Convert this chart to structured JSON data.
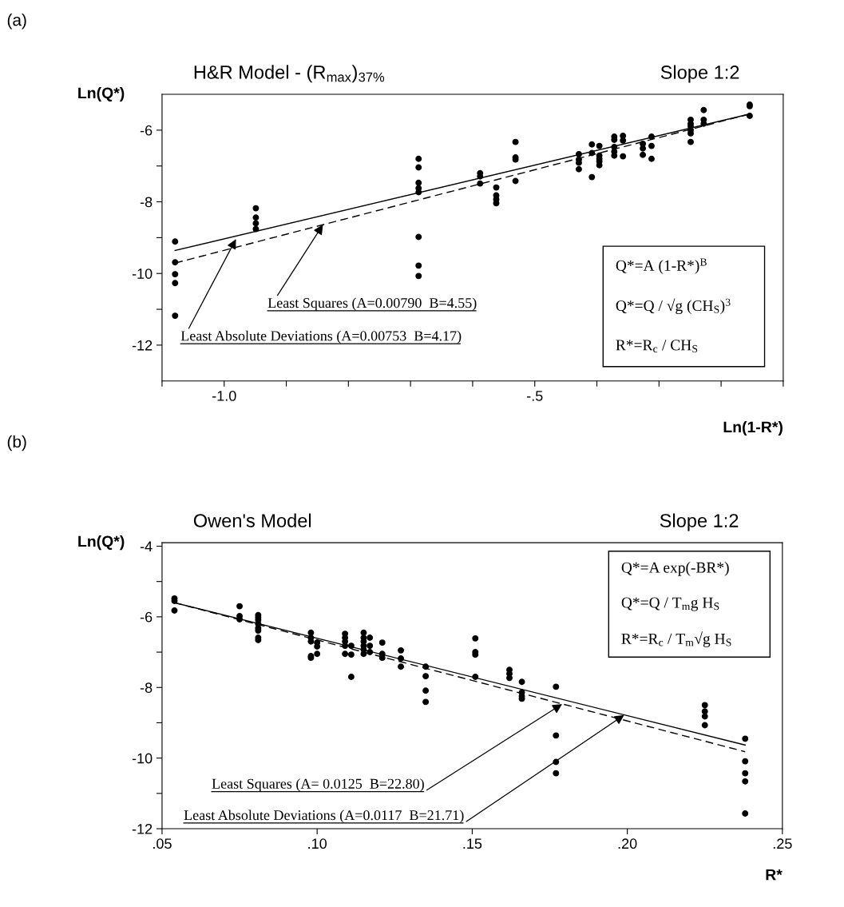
{
  "chart_data": [
    {
      "type": "scatter",
      "marker": "circle",
      "title": "H&R Model - (R$_{max}$)$_{37%}$",
      "subtitle": "Slope 1:2",
      "ylabel": "Ln(Q*)",
      "xlabel": "Ln(1-R*)",
      "xlim": [
        -1.1,
        -0.1
      ],
      "xticks": [
        {
          "value": -1.1,
          "label": null
        },
        {
          "value": -1.0,
          "label": "-1.0"
        },
        {
          "value": -0.9,
          "label": null
        },
        {
          "value": -0.8,
          "label": null
        },
        {
          "value": -0.7,
          "label": null
        },
        {
          "value": -0.6,
          "label": null
        },
        {
          "value": -0.5,
          "label": "-.5"
        },
        {
          "value": -0.4,
          "label": null
        },
        {
          "value": -0.3,
          "label": null
        },
        {
          "value": -0.2,
          "label": null
        },
        {
          "value": -0.1,
          "label": null
        }
      ],
      "ylim": [
        -13,
        -5
      ],
      "yticks": [
        -12,
        {
          "value": -11,
          "label": null
        },
        -10,
        {
          "value": -9,
          "label": null
        },
        -8,
        {
          "value": -7,
          "label": null
        },
        -6
      ],
      "grid": false,
      "legend": false,
      "series": [
        {
          "color": "#000000",
          "x": [
            -1.079,
            -1.079,
            -1.079,
            -1.079,
            -1.079,
            -0.949,
            -0.949,
            -0.949,
            -0.949,
            -0.687,
            -0.687,
            -0.687,
            -0.687,
            -0.687,
            -0.687,
            -0.687,
            -0.687,
            -0.588,
            -0.588,
            -0.588,
            -0.562,
            -0.562,
            -0.562,
            -0.562,
            -0.531,
            -0.531,
            -0.531,
            -0.531,
            -0.429,
            -0.429,
            -0.429,
            -0.429,
            -0.408,
            -0.408,
            -0.408,
            -0.396,
            -0.396,
            -0.396,
            -0.396,
            -0.396,
            -0.372,
            -0.372,
            -0.372,
            -0.372,
            -0.372,
            -0.358,
            -0.358,
            -0.358,
            -0.326,
            -0.326,
            -0.326,
            -0.312,
            -0.312,
            -0.312,
            -0.249,
            -0.249,
            -0.249,
            -0.249,
            -0.249,
            -0.249,
            -0.228,
            -0.228,
            -0.228,
            -0.154,
            -0.154,
            -0.154
          ],
          "values": [
            -9.11,
            -9.69,
            -10.02,
            -10.27,
            -11.18,
            -8.18,
            -8.44,
            -8.6,
            -8.76,
            -6.8,
            -7.04,
            -7.47,
            -7.62,
            -7.73,
            -8.98,
            -9.78,
            -10.07,
            -7.2,
            -7.29,
            -7.49,
            -7.6,
            -7.82,
            -7.93,
            -8.04,
            -6.33,
            -6.76,
            -6.82,
            -7.42,
            -6.67,
            -6.82,
            -6.91,
            -7.09,
            -6.4,
            -6.64,
            -7.31,
            -6.44,
            -6.71,
            -6.8,
            -6.87,
            -6.98,
            -6.18,
            -6.27,
            -6.47,
            -6.6,
            -6.71,
            -6.16,
            -6.29,
            -6.73,
            -6.38,
            -6.51,
            -6.69,
            -6.18,
            -6.44,
            -6.8,
            -5.71,
            -5.82,
            -5.89,
            -6.0,
            -6.09,
            -6.33,
            -5.44,
            -5.71,
            -5.82,
            -5.29,
            -5.33,
            -5.6
          ]
        },
        {
          "type": "line",
          "marker": "none",
          "line_style": "solid",
          "color": "#000000",
          "x": [
            -1.079,
            -0.154
          ],
          "values": [
            -9.36,
            -5.55
          ]
        },
        {
          "type": "line",
          "marker": "none",
          "line_style": "dashed",
          "color": "#000000",
          "x": [
            -1.079,
            -0.154
          ],
          "values": [
            -9.71,
            -5.55
          ]
        }
      ],
      "annotations": [
        "(a)",
        {
          "text": "Least Squares (A=0.00790  B=4.55)",
          "x": -0.841,
          "y": -8.64
        },
        {
          "text": "Least Absolute Deviations (A=0.00753  B=4.17)",
          "x": -0.981,
          "y": -9.04
        },
        "Q*=A (1-R*)$^{B}$",
        "Q*=Q / √g (CH$_{S}$)$^{3}$",
        "R*=R$_{c}$ / CH$_{S}$"
      ]
    },
    {
      "type": "scatter",
      "marker": "circle",
      "title": "Owen's Model",
      "subtitle": "Slope 1:2",
      "ylabel": "Ln(Q*)",
      "xlabel": "R*",
      "xlim": [
        0.05,
        0.25
      ],
      "xticks": [
        {
          "value": 0.05,
          "label": ".05"
        },
        {
          "value": 0.1,
          "label": ".10"
        },
        {
          "value": 0.15,
          "label": ".15"
        },
        {
          "value": 0.2,
          "label": ".20"
        },
        {
          "value": 0.25,
          "label": ".25"
        }
      ],
      "ylim": [
        -12,
        -3.9
      ],
      "yticks": [
        -12,
        {
          "value": -11,
          "label": null
        },
        -10,
        {
          "value": -9,
          "label": null
        },
        -8,
        {
          "value": -7,
          "label": null
        },
        -6,
        {
          "value": -5,
          "label": null
        },
        -4
      ],
      "grid": false,
      "legend": false,
      "series": [
        {
          "color": "#000000",
          "x": [
            0.054,
            0.054,
            0.054,
            0.075,
            0.075,
            0.075,
            0.081,
            0.081,
            0.081,
            0.081,
            0.081,
            0.081,
            0.081,
            0.081,
            0.098,
            0.098,
            0.098,
            0.098,
            0.098,
            0.1,
            0.1,
            0.1,
            0.109,
            0.109,
            0.109,
            0.109,
            0.109,
            0.111,
            0.111,
            0.111,
            0.115,
            0.115,
            0.115,
            0.115,
            0.115,
            0.115,
            0.117,
            0.117,
            0.117,
            0.121,
            0.121,
            0.121,
            0.127,
            0.127,
            0.127,
            0.135,
            0.135,
            0.135,
            0.135,
            0.151,
            0.151,
            0.151,
            0.151,
            0.162,
            0.162,
            0.162,
            0.166,
            0.166,
            0.166,
            0.166,
            0.177,
            0.177,
            0.177,
            0.177,
            0.225,
            0.225,
            0.225,
            0.225,
            0.238,
            0.238,
            0.238,
            0.238,
            0.238
          ],
          "values": [
            -5.48,
            -5.55,
            -5.82,
            -5.7,
            -5.98,
            -6.07,
            -5.95,
            -6.02,
            -6.09,
            -6.2,
            -6.32,
            -6.39,
            -6.59,
            -6.66,
            -6.45,
            -6.59,
            -6.7,
            -7.11,
            -7.16,
            -6.73,
            -6.84,
            -7.05,
            -6.48,
            -6.59,
            -6.7,
            -6.82,
            -7.05,
            -6.82,
            -7.07,
            -7.7,
            -6.45,
            -6.59,
            -6.7,
            -6.82,
            -6.93,
            -7.05,
            -6.59,
            -6.82,
            -7.0,
            -6.73,
            -7.05,
            -7.16,
            -6.95,
            -7.18,
            -7.41,
            -7.41,
            -7.68,
            -8.09,
            -8.41,
            -6.61,
            -7.0,
            -7.07,
            -7.7,
            -7.5,
            -7.61,
            -7.73,
            -7.84,
            -8.14,
            -8.25,
            -8.32,
            -7.98,
            -9.36,
            -10.11,
            -10.43,
            -8.5,
            -8.68,
            -8.82,
            -9.07,
            -9.45,
            -10.09,
            -10.43,
            -10.66,
            -11.57
          ]
        },
        {
          "type": "line",
          "marker": "none",
          "line_style": "solid",
          "color": "#000000",
          "x": [
            0.054,
            0.238
          ],
          "values": [
            -5.6,
            -9.63
          ]
        },
        {
          "type": "line",
          "marker": "none",
          "line_style": "dashed",
          "color": "#000000",
          "x": [
            0.054,
            0.238
          ],
          "values": [
            -5.6,
            -9.82
          ]
        }
      ],
      "annotations": [
        "(b)",
        {
          "text": "Least Squares (A= 0.0125  B=22.80)",
          "x": 0.179,
          "y": -8.47
        },
        {
          "text": "Least Absolute Deviations (A=0.0117  B=21.71)",
          "x": 0.199,
          "y": -8.78
        },
        "Q*=A exp(-BR*)",
        "Q*=Q / T$_{m}$g H$_{S}$",
        "R*=R$_{c}$ / T$_{m}$√g H$_{S}$"
      ]
    }
  ]
}
